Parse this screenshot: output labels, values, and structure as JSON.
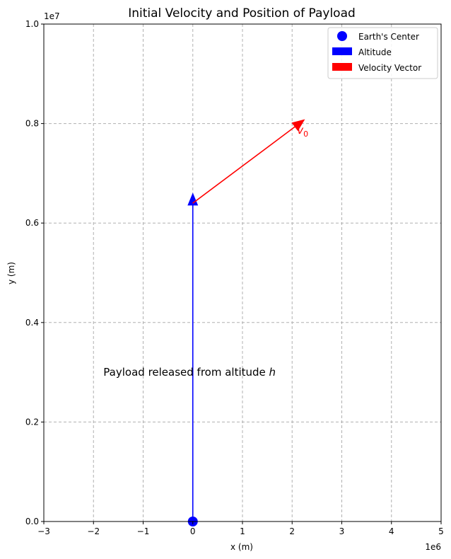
{
  "chart_data": {
    "type": "vector_plot",
    "title": "Initial Velocity and Position of Payload",
    "xlabel": "x (m)",
    "ylabel": "y (m)",
    "xlim": [
      -3000000,
      5000000
    ],
    "ylim": [
      0,
      10000000
    ],
    "x_ticks": [
      -3000000,
      -2000000,
      -1000000,
      0,
      1000000,
      2000000,
      3000000,
      4000000,
      5000000
    ],
    "x_tick_labels": [
      "−3",
      "−2",
      "−1",
      "0",
      "1",
      "2",
      "3",
      "4",
      "5"
    ],
    "y_ticks": [
      0,
      2000000,
      4000000,
      6000000,
      8000000,
      10000000
    ],
    "y_tick_labels": [
      "0.0",
      "0.2",
      "0.4",
      "0.6",
      "0.8",
      "1.0"
    ],
    "x_offset_label": "1e6",
    "y_offset_label": "1e7",
    "grid": true,
    "legend_position": "upper right",
    "earth_center": {
      "x": 0,
      "y": 0,
      "label": "Earth's Center",
      "color": "#0000ff"
    },
    "altitude_vector": {
      "x0": 0,
      "y0": 0,
      "x1": 0,
      "y1": 6600000,
      "label": "Altitude",
      "color": "#0000ff"
    },
    "velocity_vector": {
      "x0": 0,
      "y0": 6400000,
      "x1": 2250000,
      "y1": 8080000,
      "label": "Velocity Vector",
      "color": "#ff0000"
    },
    "velocity_annotation": {
      "text": "v",
      "subscript": "0",
      "x": 2100000,
      "y": 7850000
    },
    "text_annotation": {
      "prefix": "Payload released from altitude ",
      "variable": "h",
      "x": -1800000,
      "y": 3000000
    }
  }
}
